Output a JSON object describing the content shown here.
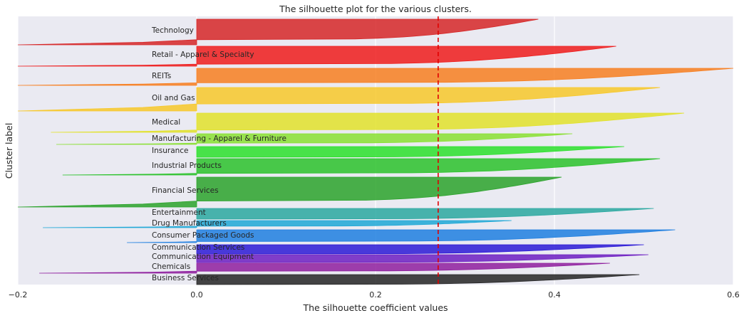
{
  "chart_data": {
    "type": "area",
    "title": "The silhouette plot for the various clusters.",
    "xlabel": "The silhouette coefficient values",
    "ylabel": "Cluster label",
    "xlim": [
      -0.2,
      0.6
    ],
    "xticks": [
      -0.2,
      0.0,
      0.2,
      0.4,
      0.6
    ],
    "xtick_labels": [
      "−0.2",
      "0.0",
      "0.2",
      "0.4",
      "0.6"
    ],
    "average_silhouette": 0.27,
    "grid": true,
    "legend": "none",
    "clusters": [
      {
        "name": "Technology",
        "color": "#d62728",
        "min": -0.2,
        "max": 0.382,
        "neg_frac": 0.2
      },
      {
        "name": "Retail - Apparel & Specialty",
        "color": "#ee1c1c",
        "min": -0.2,
        "max": 0.469,
        "neg_frac": 0.1
      },
      {
        "name": "REITs",
        "color": "#f77f21",
        "min": -0.2,
        "max": 0.6,
        "neg_frac": 0.15
      },
      {
        "name": "Oil and Gas",
        "color": "#f7c82a",
        "min": -0.2,
        "max": 0.518,
        "neg_frac": 0.3
      },
      {
        "name": "Medical",
        "color": "#e2e22b",
        "min": -0.163,
        "max": 0.545,
        "neg_frac": 0.12
      },
      {
        "name": "Manufacturing - Apparel & Furniture",
        "color": "#8ae033",
        "min": -0.157,
        "max": 0.42,
        "neg_frac": 0.12
      },
      {
        "name": "Insurance",
        "color": "#2ce02c",
        "min": 0.0,
        "max": 0.478,
        "neg_frac": 0.0
      },
      {
        "name": "Industrial Products",
        "color": "#2cc22c",
        "min": -0.15,
        "max": 0.518,
        "neg_frac": 0.1
      },
      {
        "name": "Financial Services",
        "color": "#2ca32c",
        "min": -0.2,
        "max": 0.408,
        "neg_frac": 0.2
      },
      {
        "name": "Entertainment",
        "color": "#2aa8a0",
        "min": 0.0,
        "max": 0.511,
        "neg_frac": 0.0
      },
      {
        "name": "Drug Manufacturers",
        "color": "#1fa8d6",
        "min": -0.172,
        "max": 0.352,
        "neg_frac": 0.2
      },
      {
        "name": "Consumer Packaged Goods",
        "color": "#1f7fe0",
        "min": -0.078,
        "max": 0.535,
        "neg_frac": 0.08
      },
      {
        "name": "Communication Services",
        "color": "#2c1ad6",
        "min": 0.0,
        "max": 0.5,
        "neg_frac": 0.0
      },
      {
        "name": "Communication Equipment",
        "color": "#6d1fc2",
        "min": 0.0,
        "max": 0.505,
        "neg_frac": 0.0
      },
      {
        "name": "Chemicals",
        "color": "#8f1f9f",
        "min": -0.176,
        "max": 0.462,
        "neg_frac": 0.2
      },
      {
        "name": "Business Services",
        "color": "#262626",
        "min": 0.0,
        "max": 0.495,
        "neg_frac": 0.0
      }
    ]
  }
}
